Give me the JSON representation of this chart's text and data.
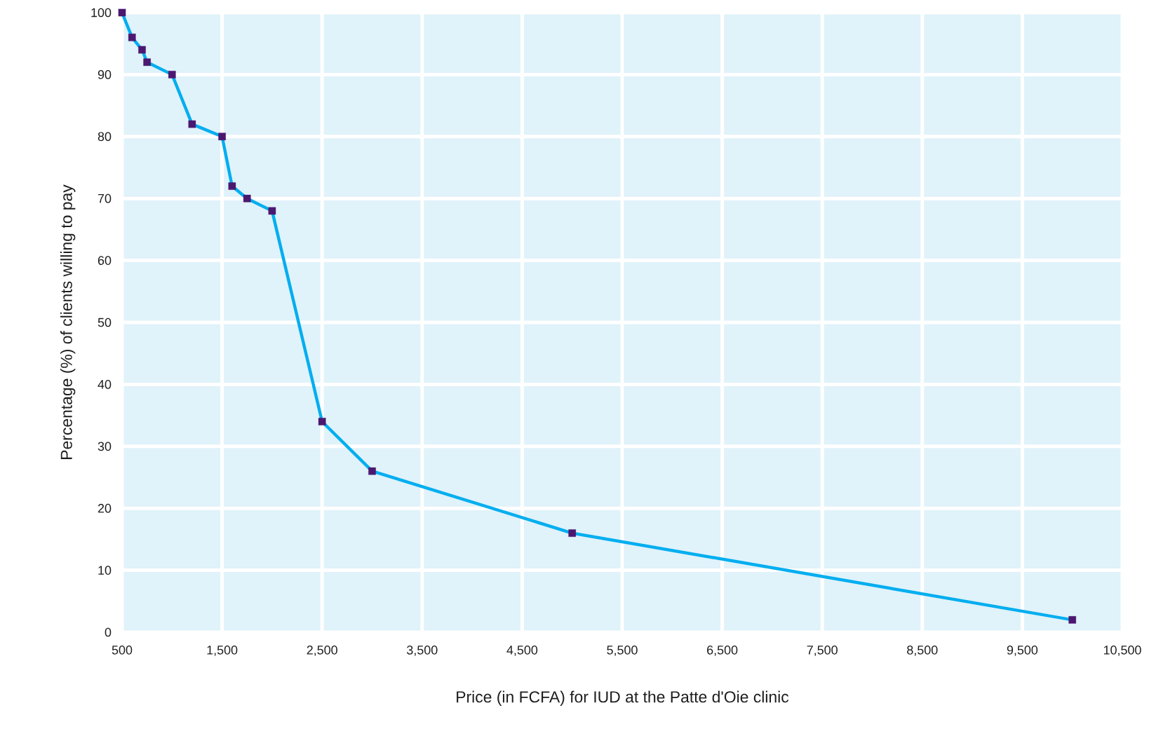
{
  "chart_data": {
    "type": "line",
    "xlabel": "Price (in FCFA) for IUD at the Patte d'Oie clinic",
    "ylabel": "Percentage (%) of clients willing to pay",
    "x": [
      500,
      600,
      700,
      750,
      1000,
      1200,
      1500,
      1600,
      1750,
      2000,
      2500,
      3000,
      5000,
      10000
    ],
    "series": [
      {
        "color": "#00aeef",
        "values": [
          100,
          96,
          94,
          92,
          90,
          82,
          80,
          72,
          70,
          68,
          34,
          26,
          16,
          2
        ]
      }
    ],
    "xlim": [
      500,
      10500
    ],
    "ylim": [
      0,
      100
    ],
    "xticks": [
      500,
      {
        "value": 1500,
        "label": "1,500"
      },
      {
        "value": 2500,
        "label": "2,500"
      },
      {
        "value": 3500,
        "label": "3,500"
      },
      {
        "value": 4500,
        "label": "4,500"
      },
      {
        "value": 5500,
        "label": "5,500"
      },
      {
        "value": 6500,
        "label": "6,500"
      },
      {
        "value": 7500,
        "label": "7,500"
      },
      {
        "value": 8500,
        "label": "8,500"
      },
      {
        "value": 9500,
        "label": "9,500"
      },
      {
        "value": 10500,
        "label": "10,500"
      }
    ],
    "yticks": [
      0,
      10,
      20,
      30,
      40,
      50,
      60,
      70,
      80,
      90,
      100
    ],
    "grid": true,
    "marker": "square",
    "line_style": "solid"
  }
}
